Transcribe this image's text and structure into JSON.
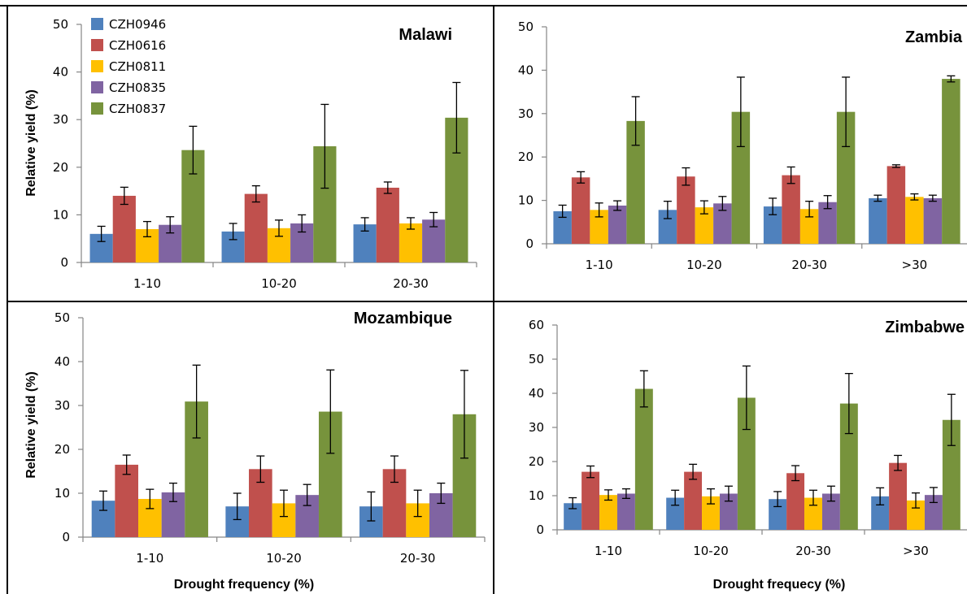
{
  "chart_data": [
    {
      "type": "bar",
      "title": "Malawi",
      "xlabel": "",
      "ylabel": "Relative yield  (%)",
      "categories": [
        "1-10",
        "10-20",
        "20-30"
      ],
      "ylim": [
        0,
        50
      ],
      "yticks": [
        0,
        10,
        20,
        30,
        40,
        50
      ],
      "legend": "top-left",
      "series": [
        {
          "name": "CZH0946",
          "values": [
            6.0,
            6.5,
            8.0
          ],
          "errors": [
            1.6,
            1.7,
            1.4
          ]
        },
        {
          "name": "CZH0616",
          "values": [
            14.0,
            14.4,
            15.7
          ],
          "errors": [
            1.8,
            1.7,
            1.2
          ]
        },
        {
          "name": "CZH0811",
          "values": [
            7.0,
            7.2,
            8.2
          ],
          "errors": [
            1.6,
            1.7,
            1.2
          ]
        },
        {
          "name": "CZH0835",
          "values": [
            7.9,
            8.2,
            9.0
          ],
          "errors": [
            1.7,
            1.8,
            1.5
          ]
        },
        {
          "name": "CZH0837",
          "values": [
            23.6,
            24.4,
            30.4
          ],
          "errors": [
            5.0,
            8.8,
            7.4
          ]
        }
      ]
    },
    {
      "type": "bar",
      "title": "Zambia",
      "xlabel": "",
      "ylabel": "",
      "categories": [
        "1-10",
        "10-20",
        "20-30",
        ">30"
      ],
      "ylim": [
        0,
        50
      ],
      "yticks": [
        0,
        10,
        20,
        30,
        40,
        50
      ],
      "series": [
        {
          "name": "CZH0946",
          "values": [
            7.5,
            7.8,
            8.6,
            10.5
          ],
          "errors": [
            1.4,
            2.0,
            1.9,
            0.7
          ]
        },
        {
          "name": "CZH0616",
          "values": [
            15.3,
            15.5,
            15.8,
            17.9
          ],
          "errors": [
            1.3,
            2.0,
            1.9,
            0.3
          ]
        },
        {
          "name": "CZH0811",
          "values": [
            7.8,
            8.4,
            8.0,
            10.8
          ],
          "errors": [
            1.6,
            1.5,
            1.8,
            0.7
          ]
        },
        {
          "name": "CZH0835",
          "values": [
            8.8,
            9.3,
            9.6,
            10.5
          ],
          "errors": [
            1.1,
            1.6,
            1.5,
            0.7
          ]
        },
        {
          "name": "CZH0837",
          "values": [
            28.3,
            30.4,
            30.4,
            38.0
          ],
          "errors": [
            5.6,
            8.0,
            8.0,
            0.7
          ]
        }
      ]
    },
    {
      "type": "bar",
      "title": "Mozambique",
      "xlabel": "Drought frequency (%)",
      "ylabel": "Relative yield  (%)",
      "categories": [
        "1-10",
        "10-20",
        "20-30"
      ],
      "ylim": [
        0,
        50
      ],
      "yticks": [
        0,
        10,
        20,
        30,
        40,
        50
      ],
      "series": [
        {
          "name": "CZH0946",
          "values": [
            8.3,
            7.0,
            7.0
          ],
          "errors": [
            2.2,
            3.0,
            3.3
          ]
        },
        {
          "name": "CZH0616",
          "values": [
            16.5,
            15.5,
            15.5
          ],
          "errors": [
            2.2,
            3.0,
            3.0
          ]
        },
        {
          "name": "CZH0811",
          "values": [
            8.7,
            7.7,
            7.7
          ],
          "errors": [
            2.2,
            3.0,
            3.0
          ]
        },
        {
          "name": "CZH0835",
          "values": [
            10.2,
            9.6,
            10.0
          ],
          "errors": [
            2.1,
            2.4,
            2.3
          ]
        },
        {
          "name": "CZH0837",
          "values": [
            30.9,
            28.6,
            28.0
          ],
          "errors": [
            8.3,
            9.5,
            10.0
          ]
        }
      ]
    },
    {
      "type": "bar",
      "title": "Zimbabwe",
      "xlabel": "Drought frequecy (%)",
      "ylabel": "",
      "categories": [
        "1-10",
        "10-20",
        "20-30",
        ">30"
      ],
      "ylim": [
        0,
        60
      ],
      "yticks": [
        0,
        10,
        20,
        30,
        40,
        50,
        60
      ],
      "series": [
        {
          "name": "CZH0946",
          "values": [
            7.8,
            9.4,
            9.0,
            9.8
          ],
          "errors": [
            1.6,
            2.2,
            2.2,
            2.5
          ]
        },
        {
          "name": "CZH0616",
          "values": [
            17.0,
            17.0,
            16.6,
            19.6
          ],
          "errors": [
            1.7,
            2.2,
            2.2,
            2.2
          ]
        },
        {
          "name": "CZH0811",
          "values": [
            10.2,
            9.8,
            9.4,
            8.6
          ],
          "errors": [
            1.5,
            2.2,
            2.2,
            2.2
          ]
        },
        {
          "name": "CZH0835",
          "values": [
            10.6,
            10.6,
            10.6,
            10.2
          ],
          "errors": [
            1.4,
            2.2,
            2.2,
            2.2
          ]
        },
        {
          "name": "CZH0837",
          "values": [
            41.3,
            38.7,
            37.0,
            32.2
          ],
          "errors": [
            5.3,
            9.3,
            8.8,
            7.5
          ]
        }
      ]
    }
  ],
  "colors": {
    "CZH0946": "#4f81bd",
    "CZH0616": "#c0504d",
    "CZH0811": "#ffc000",
    "CZH0835": "#8064a2",
    "CZH0837": "#77933c",
    "frame": "#000000",
    "axis": "#868686"
  }
}
